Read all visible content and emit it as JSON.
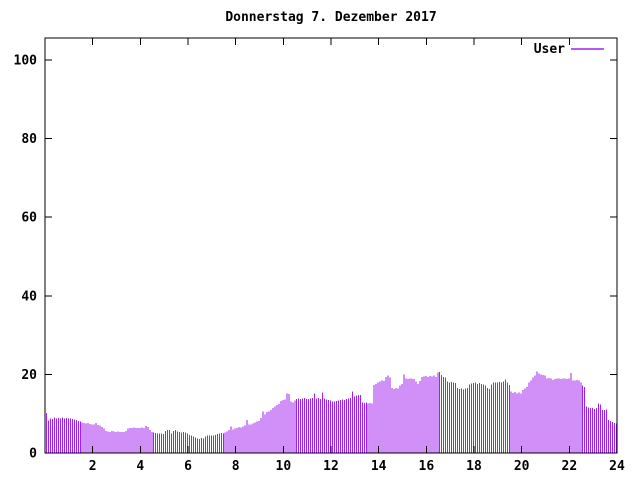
{
  "window": {
    "background": "#ffffff"
  },
  "colors": {
    "background": "#ffffff",
    "frame": "#000000",
    "text": "#000000",
    "series_user": "#a020f0"
  },
  "legend": {
    "label": "User"
  },
  "chart_data": {
    "type": "bar",
    "subtype": "impulses",
    "title": "Donnerstag 7. Dezember 2017",
    "xlabel": "",
    "ylabel": "",
    "xlim": [
      0,
      24
    ],
    "ylim": [
      0,
      105.6
    ],
    "xticks": [
      2,
      4,
      6,
      8,
      10,
      12,
      14,
      16,
      18,
      20,
      22,
      24
    ],
    "yticks": [
      0,
      20,
      40,
      60,
      80,
      100
    ],
    "grid": false,
    "tick_style": "inward-mirrored",
    "legend_position": "top-right-inside",
    "x_unit": "hour-of-day",
    "sample_interval_minutes": 5,
    "series": [
      {
        "name": "User",
        "color": "#a020f0",
        "values": [
          10.2,
          8.3,
          8.8,
          8.7,
          9.0,
          8.8,
          8.9,
          8.8,
          9.0,
          8.8,
          8.9,
          8.8,
          8.8,
          8.6,
          8.5,
          8.4,
          8.2,
          8.0,
          7.8,
          7.6,
          7.5,
          7.6,
          7.4,
          7.2,
          7.2,
          7.6,
          7.1,
          7.0,
          6.6,
          6.2,
          5.6,
          5.5,
          5.4,
          5.6,
          5.5,
          5.4,
          5.5,
          5.4,
          5.3,
          5.4,
          5.6,
          6.2,
          6.4,
          6.3,
          6.5,
          6.4,
          6.3,
          6.4,
          6.5,
          6.4,
          6.9,
          6.6,
          5.9,
          5.3,
          5.2,
          5.1,
          5.0,
          4.9,
          5.0,
          4.8,
          5.6,
          5.9,
          5.8,
          4.9,
          5.6,
          5.8,
          5.5,
          5.3,
          5.2,
          5.3,
          5.2,
          5.0,
          4.6,
          4.4,
          4.2,
          3.9,
          3.7,
          3.6,
          3.8,
          3.7,
          4.2,
          4.4,
          4.5,
          4.4,
          4.5,
          4.6,
          4.8,
          5.0,
          5.1,
          5.0,
          5.2,
          5.5,
          5.8,
          6.7,
          6.0,
          6.2,
          6.4,
          6.6,
          6.5,
          6.7,
          7.0,
          8.4,
          7.2,
          7.3,
          7.5,
          7.8,
          8.0,
          8.2,
          8.9,
          10.6,
          9.8,
          10.4,
          10.6,
          11.0,
          11.5,
          11.8,
          12.2,
          12.5,
          13.2,
          13.5,
          13.6,
          15.1,
          15.0,
          13.1,
          12.9,
          13.4,
          13.7,
          13.9,
          13.8,
          13.9,
          14.0,
          13.8,
          13.8,
          13.9,
          14.0,
          15.2,
          13.9,
          14.0,
          13.8,
          15.4,
          13.9,
          13.6,
          13.5,
          13.4,
          13.1,
          13.1,
          13.2,
          13.4,
          13.5,
          13.6,
          13.5,
          13.8,
          13.9,
          14.0,
          15.7,
          14.4,
          14.6,
          14.8,
          14.7,
          12.9,
          12.7,
          12.8,
          12.6,
          12.7,
          12.6,
          17.3,
          17.6,
          18.0,
          18.2,
          18.4,
          18.3,
          19.4,
          19.7,
          19.2,
          16.5,
          16.3,
          16.6,
          16.4,
          17.2,
          17.6,
          20.0,
          19.0,
          18.8,
          18.9,
          19.0,
          18.8,
          18.2,
          17.5,
          18.3,
          19.3,
          19.5,
          19.6,
          19.4,
          19.6,
          19.5,
          19.7,
          19.4,
          20.5,
          20.6,
          19.8,
          19.4,
          19.2,
          18.2,
          18.0,
          18.1,
          17.9,
          17.8,
          16.5,
          16.3,
          16.4,
          16.2,
          16.4,
          16.6,
          17.4,
          17.7,
          17.8,
          17.9,
          17.6,
          17.8,
          17.5,
          17.4,
          17.2,
          16.5,
          16.3,
          17.4,
          17.9,
          18.0,
          17.9,
          18.1,
          17.9,
          18.2,
          18.7,
          18.0,
          17.3,
          15.7,
          15.3,
          15.5,
          15.2,
          15.4,
          15.1,
          16.0,
          16.4,
          16.8,
          18.0,
          18.4,
          19.2,
          19.7,
          20.7,
          20.2,
          20.0,
          19.9,
          19.7,
          18.9,
          19.1,
          18.9,
          18.6,
          18.8,
          18.9,
          19.0,
          18.8,
          18.9,
          19.0,
          18.8,
          18.9,
          20.3,
          18.4,
          18.5,
          18.6,
          18.4,
          17.9,
          17.2,
          16.8,
          11.8,
          11.6,
          11.4,
          11.5,
          11.2,
          11.5,
          12.6,
          12.4,
          11.0,
          10.9,
          11.1,
          8.4,
          8.1,
          7.9,
          7.6,
          7.5
        ]
      }
    ]
  }
}
